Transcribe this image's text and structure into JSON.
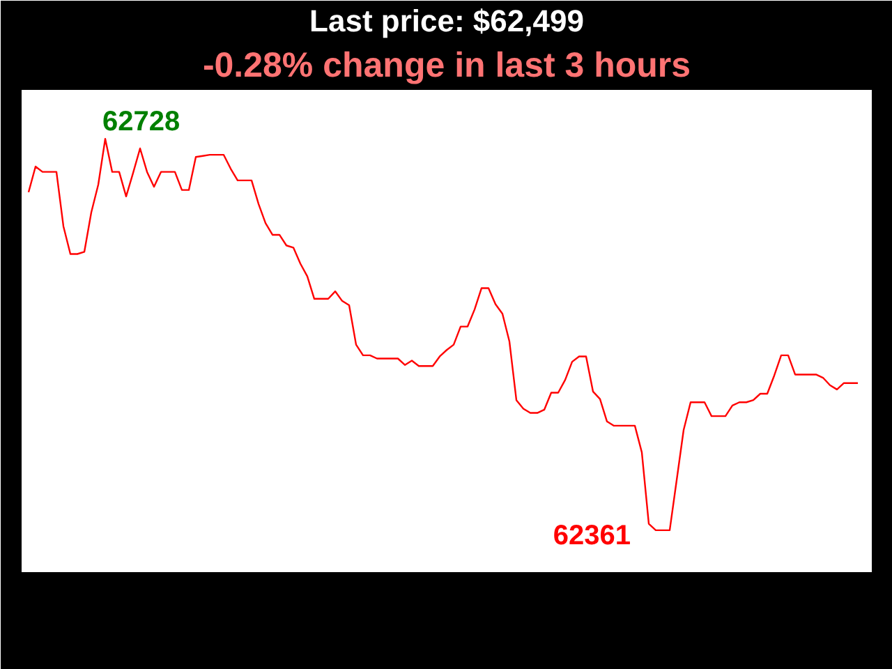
{
  "chart_data": {
    "type": "line",
    "title": "Last price: $62,499",
    "subtitle": "-0.28% change in last 3 hours",
    "categories": [
      null,
      null,
      null,
      null,
      null,
      null,
      null,
      null,
      null,
      null,
      null,
      null,
      null,
      null,
      null,
      null,
      null,
      null,
      null,
      null,
      null,
      null,
      null,
      null,
      null,
      null,
      null,
      null,
      null,
      null,
      null,
      null,
      null,
      null,
      null,
      null,
      null,
      null,
      null,
      null,
      null,
      null,
      null,
      null,
      null,
      null,
      null,
      null,
      null,
      null,
      null,
      null,
      null,
      null,
      null,
      null,
      null,
      null,
      null,
      null,
      null,
      null,
      null,
      null,
      null,
      null,
      null,
      null,
      null,
      null,
      null,
      null,
      null,
      null,
      null,
      null,
      null,
      null,
      null,
      null,
      null,
      null,
      null,
      null,
      null,
      null,
      null,
      null,
      null,
      null,
      null,
      null,
      null,
      null,
      null,
      null,
      null,
      null,
      null,
      null,
      null,
      null,
      null,
      null,
      null,
      null,
      null,
      null,
      null,
      null,
      null,
      null,
      null,
      null,
      null,
      null,
      null,
      null,
      null,
      null
    ],
    "series": [
      {
        "color": "#ff0000",
        "values": [
          62678,
          62702,
          62697,
          62697,
          62697,
          62646,
          62620,
          62620,
          62622,
          62659,
          62685,
          62728,
          62697,
          62697,
          62674,
          62696,
          62719,
          62697,
          62683,
          62697,
          62697,
          62697,
          62680,
          62680,
          62711,
          62712,
          62713,
          62713,
          62713,
          62700,
          62689,
          62689,
          62689,
          62667,
          62649,
          62638,
          62638,
          62628,
          62626,
          62611,
          62599,
          62578,
          62578,
          62578,
          62585,
          62576,
          62572,
          62535,
          62525,
          62525,
          62522,
          62522,
          62522,
          62522,
          62516,
          62520,
          62515,
          62515,
          62515,
          62524,
          62530,
          62535,
          62552,
          62552,
          62568,
          62588,
          62588,
          62573,
          62564,
          62538,
          62483,
          62475,
          62471,
          62471,
          62474,
          62490,
          62490,
          62502,
          62519,
          62524,
          62524,
          62491,
          62484,
          62463,
          62459,
          62459,
          62459,
          62459,
          62434,
          62367,
          62361,
          62361,
          62361,
          62408,
          62455,
          62481,
          62481,
          62481,
          62468,
          62468,
          62468,
          62478,
          62481,
          62481,
          62483,
          62489,
          62489,
          62506,
          62525,
          62525,
          62507,
          62507,
          62507,
          62507,
          62504,
          62497,
          62493,
          62499,
          62499,
          62499
        ],
        "value_labels": [
          null,
          null,
          null,
          null,
          null,
          null,
          null,
          null,
          null,
          null,
          null,
          "62728",
          null,
          null,
          null,
          null,
          null,
          null,
          null,
          null,
          null,
          null,
          null,
          null,
          null,
          null,
          null,
          null,
          null,
          null,
          null,
          null,
          null,
          null,
          null,
          null,
          null,
          null,
          null,
          null,
          null,
          null,
          null,
          null,
          null,
          null,
          null,
          null,
          null,
          null,
          null,
          null,
          null,
          null,
          null,
          null,
          null,
          null,
          null,
          null,
          null,
          null,
          null,
          null,
          null,
          null,
          null,
          null,
          null,
          null,
          null,
          null,
          null,
          null,
          null,
          null,
          null,
          null,
          null,
          null,
          null,
          null,
          null,
          null,
          null,
          null,
          null,
          null,
          null,
          null,
          "62361",
          null,
          null,
          null,
          null,
          null,
          null,
          null,
          null,
          null,
          null,
          null,
          null,
          null,
          null,
          null,
          null,
          null,
          null,
          null,
          null,
          null,
          null,
          null,
          null,
          null,
          null,
          null,
          null,
          null
        ]
      }
    ],
    "tick_labels": false
  }
}
